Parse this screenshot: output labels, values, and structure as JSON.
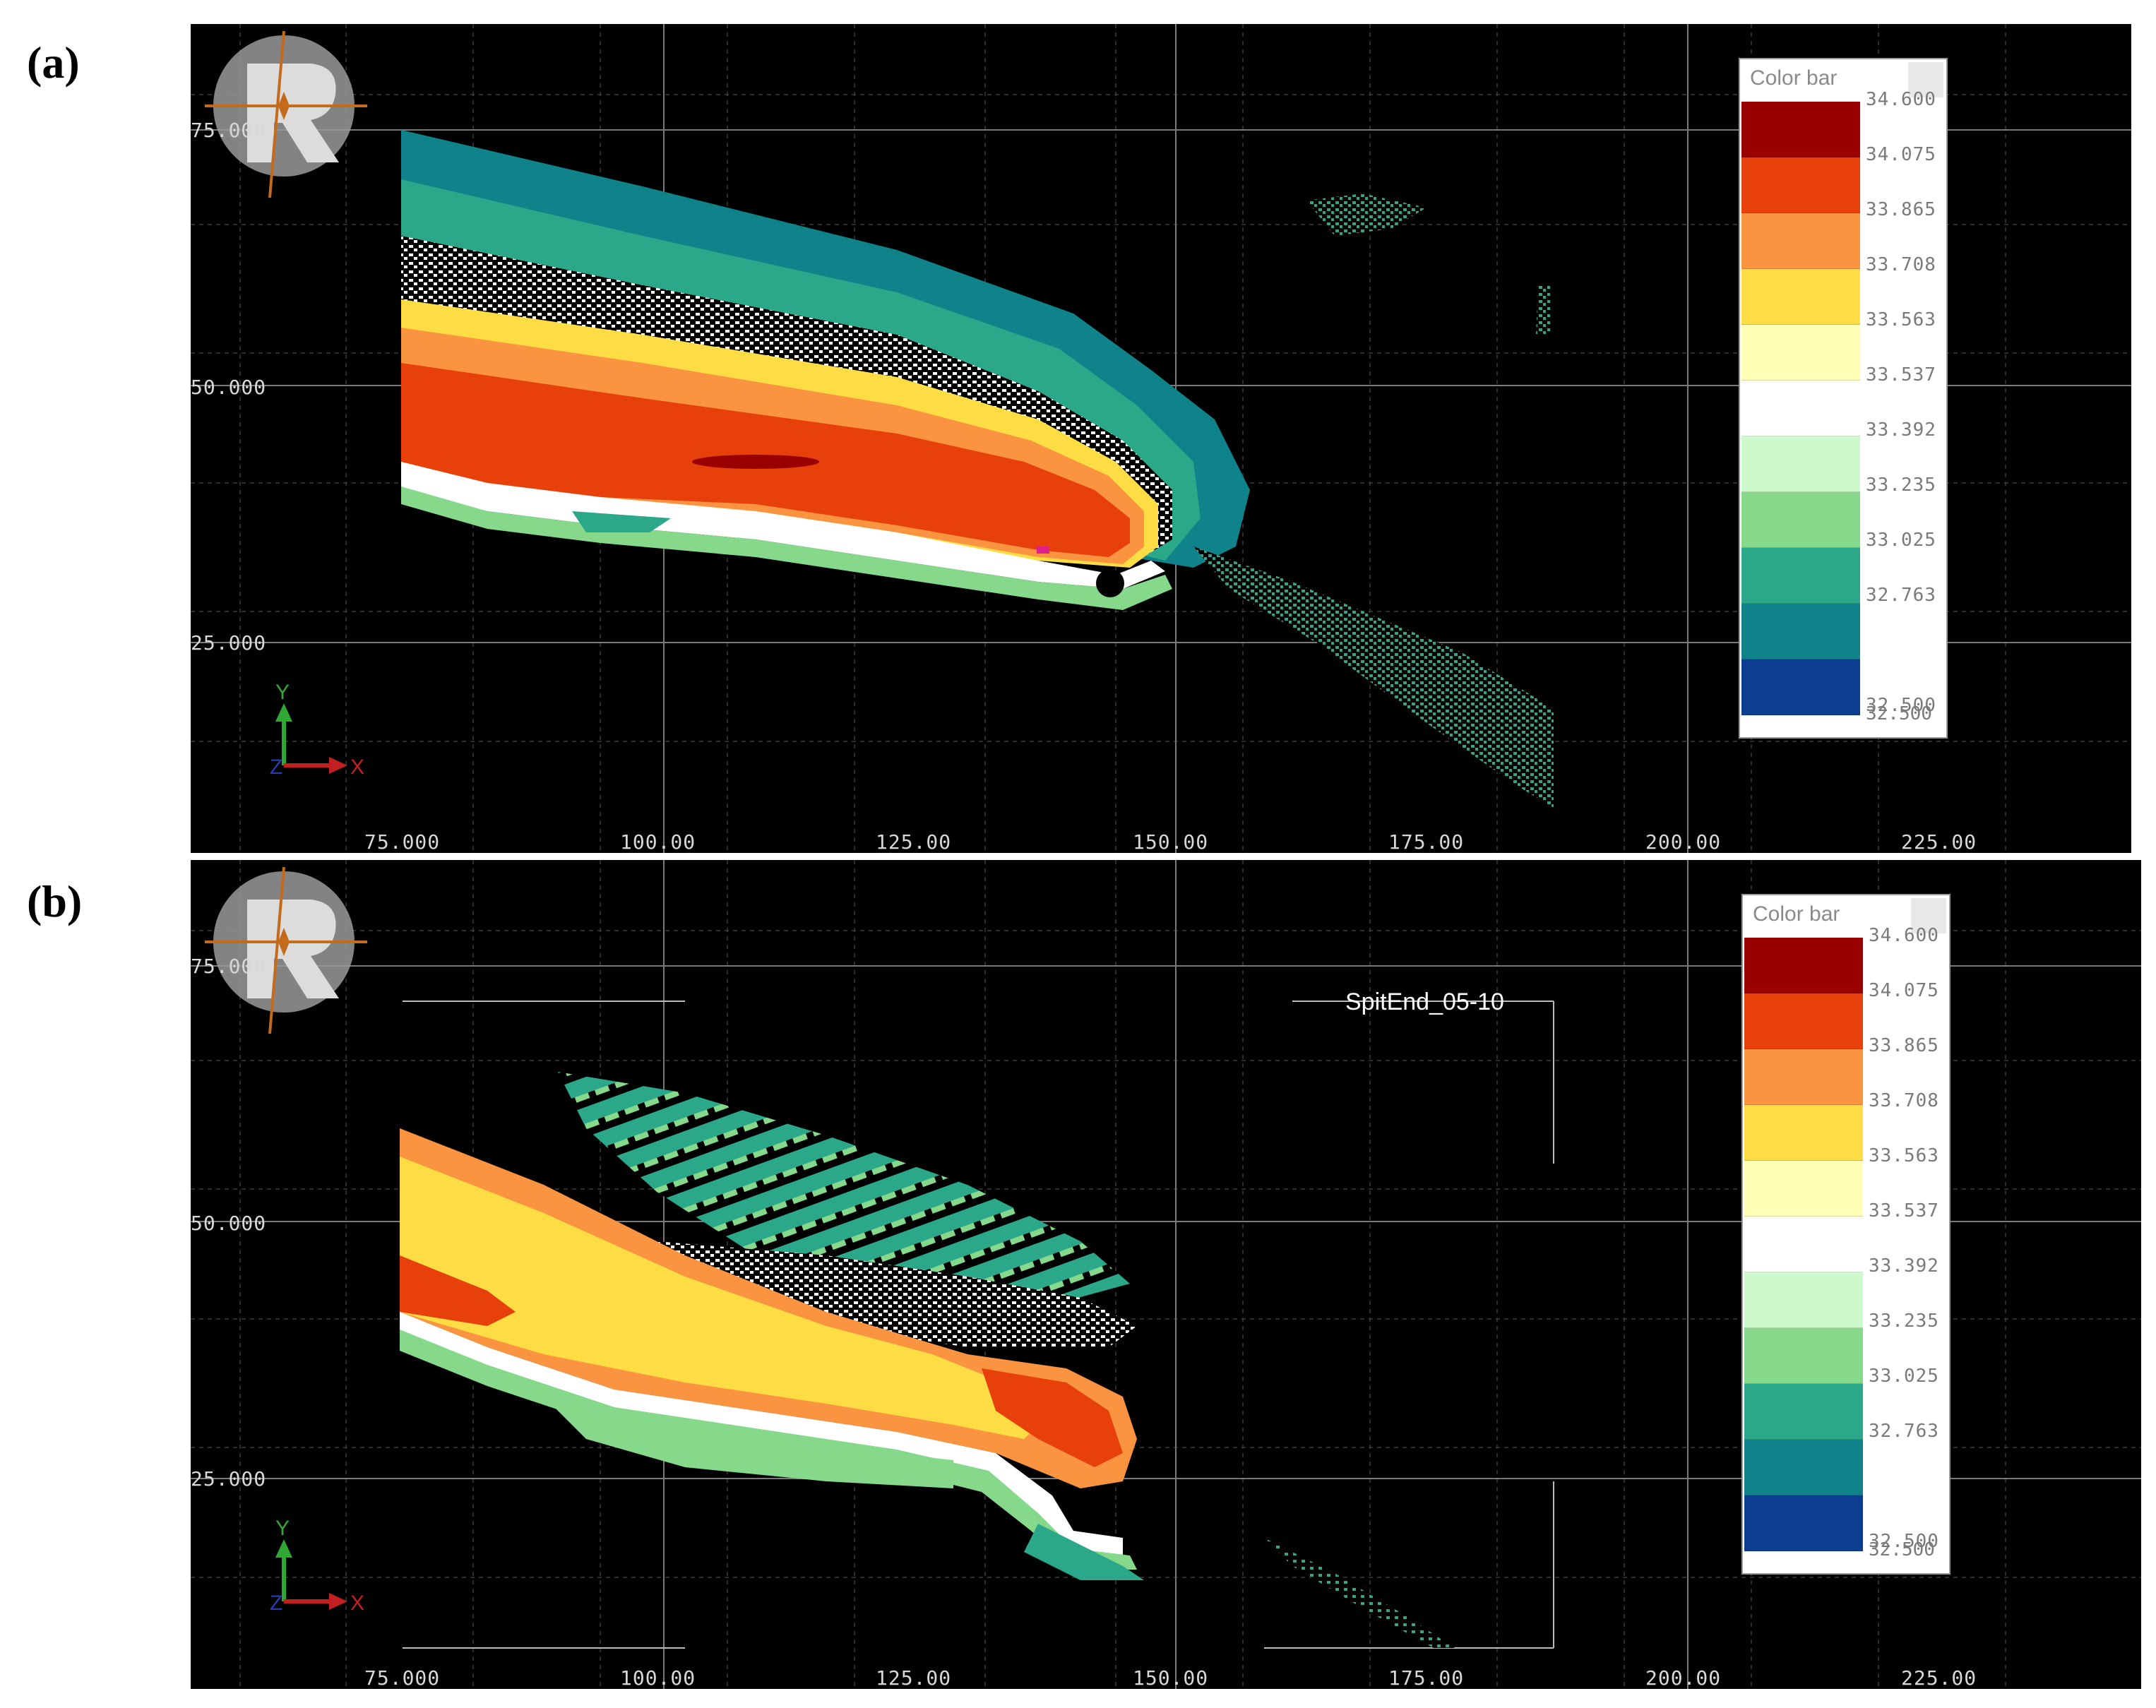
{
  "panels": [
    {
      "label": "(a)",
      "y_ticks": [
        "75.000",
        "50.000",
        "25.000"
      ],
      "x_ticks": [
        "75.000",
        "100.00",
        "125.00",
        "150.00",
        "175.00",
        "200.00",
        "225.00"
      ],
      "axis_y": "Y",
      "axis_x": "X",
      "axis_z": "Z",
      "annotation": ""
    },
    {
      "label": "(b)",
      "y_ticks": [
        "75.000",
        "50.000",
        "25.000"
      ],
      "x_ticks": [
        "75.000",
        "100.00",
        "125.00",
        "150.00",
        "175.00",
        "200.00",
        "225.00"
      ],
      "axis_y": "Y",
      "axis_x": "X",
      "axis_z": "Z",
      "annotation": "SpitEnd_05-10"
    }
  ],
  "colorbar": {
    "title": "Color bar",
    "labels": [
      "34.600",
      "34.075",
      "33.865",
      "33.708",
      "33.563",
      "33.537",
      "33.392",
      "33.235",
      "33.025",
      "32.763",
      "32.500",
      "32.500"
    ],
    "colors": [
      "#9b0000",
      "#e8400a",
      "#fb9440",
      "#fedd44",
      "#ffffb8",
      "#ffffff",
      "#cdf8cc",
      "#86d98a",
      "#2ba889",
      "#0f8389",
      "#0b3d91"
    ]
  },
  "icons": {
    "logo": "rigel-logo-icon",
    "axis_triad": "axis-triad-icon"
  }
}
